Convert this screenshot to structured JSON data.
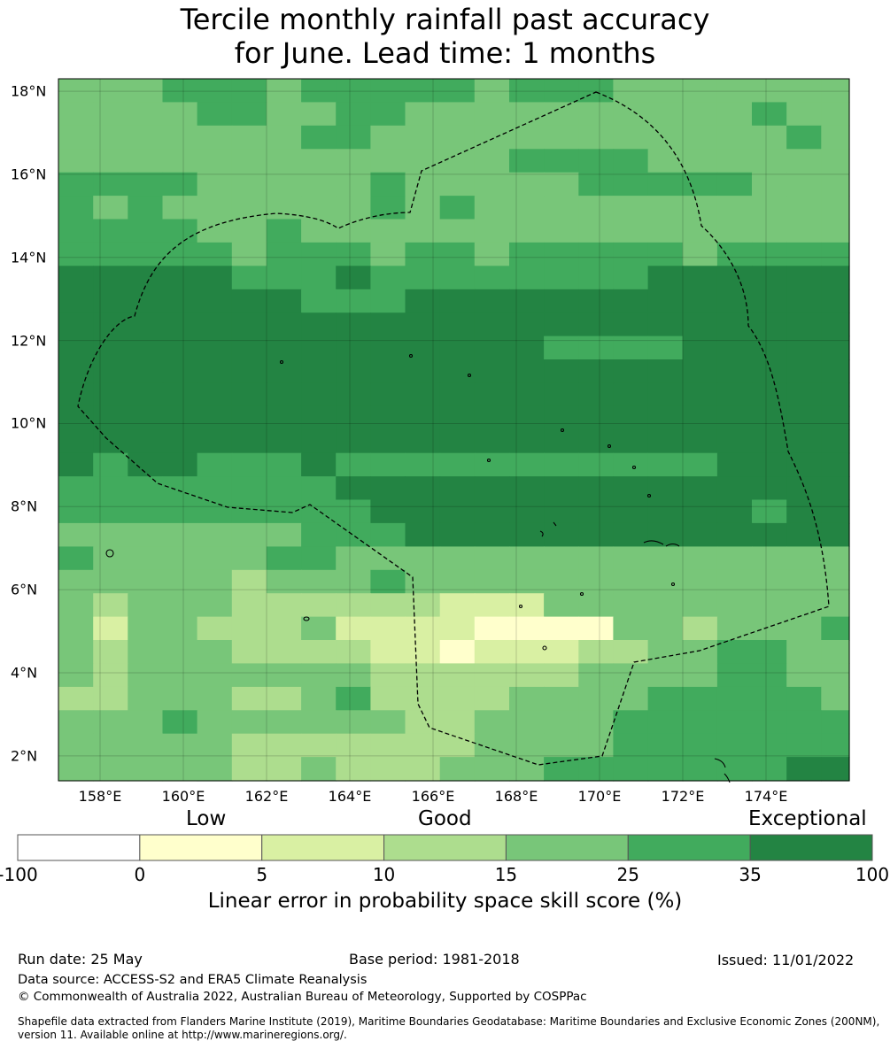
{
  "title": {
    "line1": "Tercile monthly rainfall past accuracy",
    "line2": "for June. Lead time: 1 months"
  },
  "axes": {
    "lat_labels": [
      "18°N",
      "16°N",
      "14°N",
      "12°N",
      "10°N",
      "8°N",
      "6°N",
      "4°N",
      "2°N"
    ],
    "lat_values": [
      18,
      16,
      14,
      12,
      10,
      8,
      6,
      4,
      2
    ],
    "lon_labels": [
      "158°E",
      "160°E",
      "162°E",
      "164°E",
      "166°E",
      "168°E",
      "170°E",
      "172°E",
      "174°E"
    ],
    "lon_values": [
      158,
      160,
      162,
      164,
      166,
      168,
      170,
      172,
      174
    ],
    "lon_range": [
      157,
      176
    ],
    "lat_range": [
      1.4,
      18.3
    ]
  },
  "colorbar": {
    "category_labels": {
      "low": "Low",
      "good": "Good",
      "exceptional": "Exceptional"
    },
    "ticks": [
      "-100",
      "0",
      "5",
      "10",
      "15",
      "25",
      "35",
      "100"
    ],
    "colors": [
      "#ffffff",
      "#ffffcc",
      "#d9f0a3",
      "#addd8e",
      "#78c679",
      "#41ab5d",
      "#238443"
    ],
    "title": "Linear error in probability space skill score (%)"
  },
  "footer": {
    "run_date": "Run date: 25 May",
    "base_period": "Base period: 1981-2018",
    "issued": "Issued: 11/01/2022",
    "data_source": "Data source: ACCESS-S2 and ERA5 Climate Reanalysis",
    "copyright": "© Commonwealth of Australia 2022, Australian Bureau of Meteorology, Supported by COSPPac",
    "shapefile_line1": "Shapefile data extracted from Flanders Marine Institute (2019), Maritime Boundaries Geodatabase: Maritime Boundaries and Exclusive Economic Zones (200NM),",
    "shapefile_line2": "version 11. Available online at http://www.marineregions.org/."
  },
  "map_data": {
    "grid_lon_start": 157.0,
    "grid_lat_top": 18.3,
    "cell_lon": 0.833,
    "cell_lat": 0.563,
    "category_grid": [
      "444555455555455544444444",
      "444455445544444444445444",
      "444444455444444444444544",
      "444444444444455554444444",
      "555544444544444555554444",
      "545444444545444444444444",
      "555544544444444444444444",
      "555554555455455555455555",
      "666665556555555556666666",
      "666666655566666666666666",
      "666666666666666666666666",
      "666666666666665555666666",
      "666666666666666666666666",
      "666666666666666666666666",
      "666666666666666666666666",
      "666666666666666666666666",
      "656655565555555555566666",
      "555555556666666666666666",
      "555555555666666666665665",
      "444444455566666666666665",
      "544444554444444444444444",
      "444443444544444444444444",
      "434443333332224444444444",
      "424433342222111144344455",
      "434443333221222334455444",
      "434444444333333444455444",
      "334443345333344445555544",
      "444544444433444455555554",
      "444443333333444455555555",
      "444443343334445555555666",
      "444455555555555566665556",
      "444444555555556666666666"
    ]
  }
}
